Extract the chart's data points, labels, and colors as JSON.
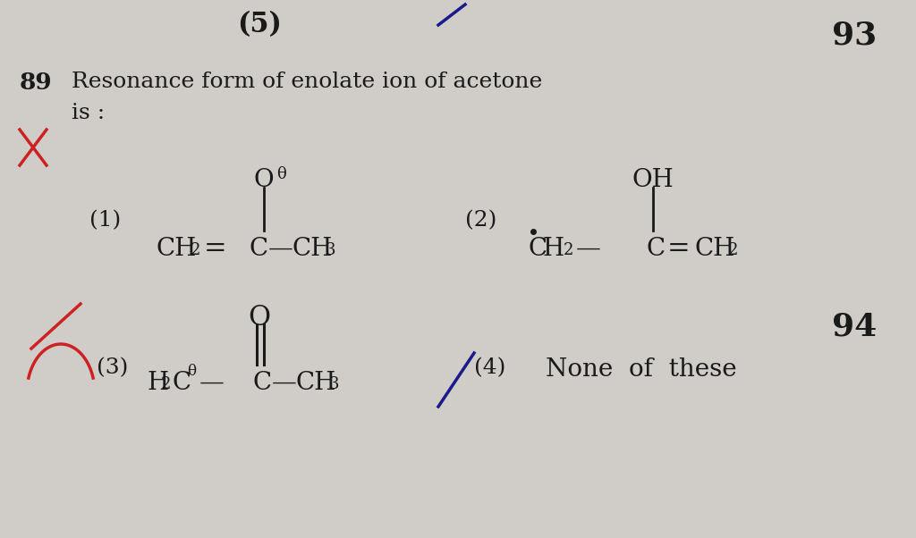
{
  "background_color": "#d0ccc8",
  "font_color": "#1a1a1a",
  "red_color": "#cc2222",
  "blue_color": "#1a1a8c",
  "page_num_top": "93",
  "page_num_bottom": "94",
  "question_num": "89",
  "question_text": "Resonance form of enolate ion of acetone",
  "question_sub": "is :",
  "top_partial": "(5)",
  "figsize": [
    10.24,
    6.02
  ],
  "dpi": 100
}
